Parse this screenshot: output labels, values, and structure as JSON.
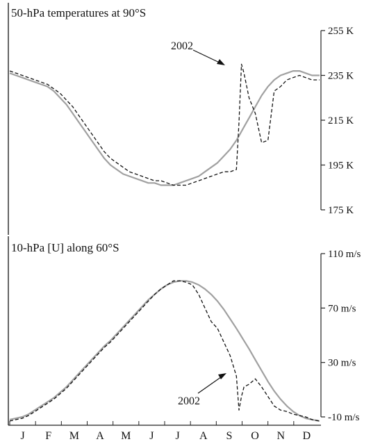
{
  "chart_data": [
    {
      "type": "line",
      "title": "50-hPa temperatures at 90°S",
      "y_ticks": [
        "255 K",
        "235 K",
        "215 K",
        "195 K",
        "175 K"
      ],
      "y_tick_values": [
        255,
        235,
        215,
        195,
        175
      ],
      "ylim": [
        175,
        255
      ],
      "annotation": "2002",
      "annotation_target": {
        "x": 9.2,
        "y": 240
      },
      "xlim": [
        0,
        12.3
      ],
      "x": [
        0,
        0.25,
        0.5,
        0.75,
        1,
        1.25,
        1.5,
        1.75,
        2,
        2.25,
        2.5,
        2.75,
        3,
        3.25,
        3.5,
        3.75,
        4,
        4.25,
        4.5,
        4.75,
        5,
        5.25,
        5.5,
        5.75,
        6,
        6.25,
        6.5,
        6.75,
        7,
        7.25,
        7.5,
        7.75,
        8,
        8.25,
        8.5,
        8.75,
        9,
        9.1,
        9.2,
        9.3,
        9.5,
        9.75,
        10,
        10.25,
        10.5,
        10.75,
        11,
        11.25,
        11.5,
        11.75,
        12,
        12.3
      ],
      "series": [
        {
          "values": [
            237,
            236,
            235,
            234,
            233,
            232,
            231,
            229,
            227,
            224,
            221,
            217,
            213,
            209,
            205,
            201,
            198,
            196,
            194,
            192,
            191,
            190,
            189,
            188,
            188,
            187,
            186,
            186,
            186,
            187,
            188,
            189,
            190,
            191,
            192,
            192,
            193,
            214,
            240,
            236,
            225,
            218,
            205,
            206,
            228,
            230,
            233,
            234,
            235,
            234,
            233,
            233
          ]
        },
        {
          "values": [
            236,
            235,
            234,
            233,
            232,
            231,
            230,
            228,
            225,
            222,
            218,
            214,
            210,
            206,
            202,
            198,
            195,
            193,
            191,
            190,
            189,
            188,
            187,
            187,
            186,
            186,
            186,
            187,
            188,
            189,
            190,
            192,
            194,
            196,
            199,
            202,
            206,
            208,
            210,
            212,
            216,
            221,
            226,
            230,
            233,
            235,
            236,
            237,
            237,
            236,
            235,
            235
          ]
        }
      ]
    },
    {
      "type": "line",
      "title": "10-hPa [U] along 60°S",
      "y_ticks": [
        "110 m/s",
        "70 m/s",
        "30 m/s",
        "-10 m/s"
      ],
      "y_tick_values": [
        110,
        70,
        30,
        -10
      ],
      "ylim": [
        -25,
        110
      ],
      "annotation": "2002",
      "annotation_target": {
        "x": 9.2,
        "y": 16
      },
      "xlim": [
        0,
        12.3
      ],
      "x": [
        0,
        0.25,
        0.5,
        0.75,
        1,
        1.25,
        1.5,
        1.75,
        2,
        2.25,
        2.5,
        2.75,
        3,
        3.25,
        3.5,
        3.75,
        4,
        4.25,
        4.5,
        4.75,
        5,
        5.25,
        5.5,
        5.75,
        6,
        6.25,
        6.5,
        6.75,
        7,
        7.25,
        7.5,
        7.75,
        8,
        8.25,
        8.5,
        8.75,
        9,
        9.1,
        9.2,
        9.3,
        9.5,
        9.75,
        10,
        10.25,
        10.5,
        10.75,
        11,
        11.25,
        11.5,
        11.75,
        12,
        12.3
      ],
      "series": [
        {
          "values": [
            -13,
            -12,
            -11,
            -9,
            -6,
            -3,
            0,
            3,
            7,
            11,
            16,
            21,
            26,
            31,
            36,
            41,
            45,
            50,
            55,
            60,
            65,
            70,
            75,
            80,
            84,
            87,
            90,
            90,
            89,
            87,
            80,
            70,
            60,
            55,
            45,
            35,
            20,
            -5,
            5,
            12,
            14,
            18,
            12,
            5,
            -2,
            -5,
            -6,
            -8,
            -9,
            -10,
            -12,
            -13
          ]
        },
        {
          "values": [
            -12,
            -11,
            -10,
            -8,
            -5,
            -2,
            1,
            4,
            8,
            12,
            17,
            22,
            27,
            32,
            37,
            42,
            46,
            51,
            56,
            61,
            66,
            71,
            76,
            80,
            84,
            87,
            89,
            90,
            90,
            89,
            87,
            84,
            80,
            75,
            69,
            62,
            55,
            52,
            49,
            46,
            40,
            32,
            24,
            16,
            9,
            3,
            -2,
            -6,
            -9,
            -11,
            -12,
            -13
          ]
        }
      ]
    }
  ],
  "x_axis": {
    "months": [
      "J",
      "F",
      "M",
      "A",
      "M",
      "J",
      "J",
      "A",
      "S",
      "O",
      "N",
      "D"
    ]
  }
}
